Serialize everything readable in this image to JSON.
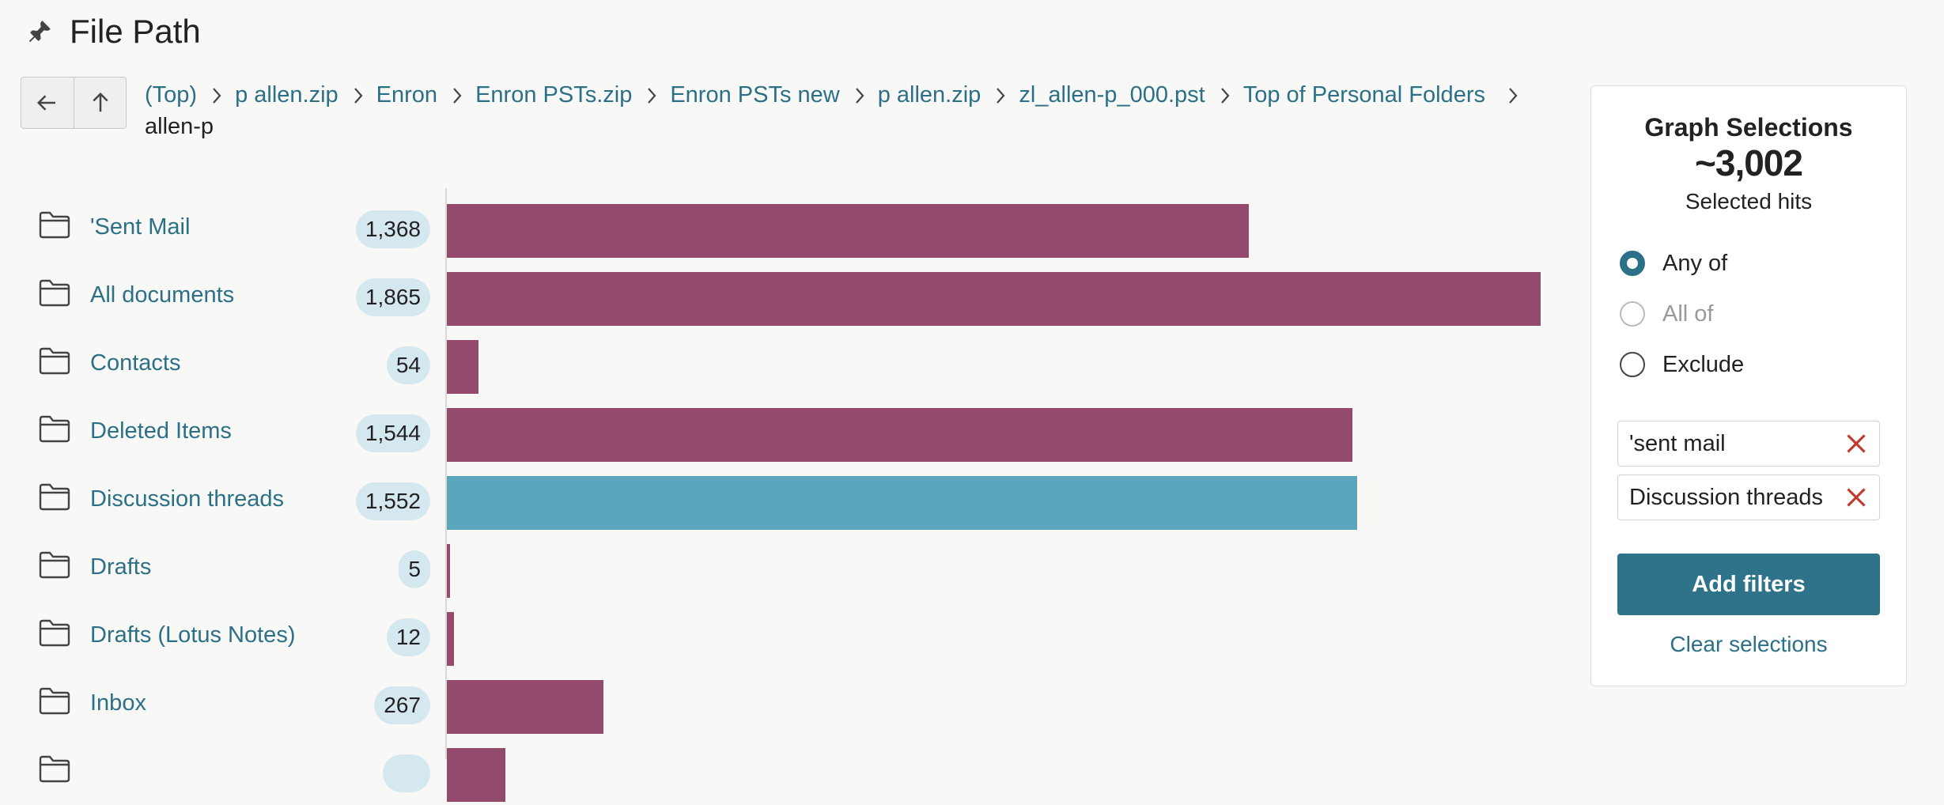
{
  "header": {
    "title": "File Path",
    "pin_icon": "pin-icon"
  },
  "nav": {
    "back_icon": "arrow-left-icon",
    "up_icon": "arrow-up-icon"
  },
  "breadcrumb": [
    "(Top)",
    "p allen.zip",
    "Enron",
    "Enron PSTs.zip",
    "Enron PSTs new",
    "p allen.zip",
    "zl_allen-p_000.pst",
    "Top of Personal Folders",
    "allen-p"
  ],
  "folders": [
    {
      "label": "'Sent Mail",
      "count": "1,368",
      "value": 1368,
      "selected": false
    },
    {
      "label": "All documents",
      "count": "1,865",
      "value": 1865,
      "selected": false
    },
    {
      "label": "Contacts",
      "count": "54",
      "value": 54,
      "selected": false
    },
    {
      "label": "Deleted Items",
      "count": "1,544",
      "value": 1544,
      "selected": false
    },
    {
      "label": "Discussion threads",
      "count": "1,552",
      "value": 1552,
      "selected": true
    },
    {
      "label": "Drafts",
      "count": "5",
      "value": 5,
      "selected": false
    },
    {
      "label": "Drafts (Lotus Notes)",
      "count": "12",
      "value": 12,
      "selected": false
    },
    {
      "label": "Inbox",
      "count": "267",
      "value": 267,
      "selected": false
    },
    {
      "label": "",
      "count": "",
      "value": 100,
      "selected": false
    }
  ],
  "colors": {
    "bar": "#934a6c",
    "bar_selected": "#5aa6bd",
    "accent": "#2f738a",
    "link": "#2c7088",
    "remove": "#c0392b"
  },
  "panel": {
    "title": "Graph Selections",
    "hits": "~3,002",
    "hits_label": "Selected hits",
    "options": [
      {
        "label": "Any of",
        "checked": true,
        "disabled": false
      },
      {
        "label": "All of",
        "checked": false,
        "disabled": true
      },
      {
        "label": "Exclude",
        "checked": false,
        "disabled": false
      }
    ],
    "chips": [
      "'sent mail",
      "Discussion threads"
    ],
    "add_filters": "Add filters",
    "clear": "Clear selections"
  }
}
